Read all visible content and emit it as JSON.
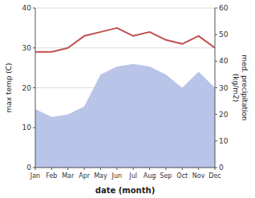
{
  "chart_data": {
    "type": "line",
    "x_label": "date (month)",
    "y_label": "max temp (C)",
    "y2_label": "med. precipitation\n(kg/m2)",
    "categories": [
      "Jan",
      "Feb",
      "Mar",
      "Apr",
      "May",
      "Jun",
      "Jul",
      "Aug",
      "Sep",
      "Oct",
      "Nov",
      "Dec"
    ],
    "series": [
      {
        "type": "area",
        "axis": "y2",
        "color": "#b8c4e8",
        "values": [
          22,
          19,
          20,
          23,
          35,
          38,
          39,
          38,
          35,
          30,
          36,
          30
        ]
      },
      {
        "type": "line",
        "color": "#c0504d",
        "values": [
          29,
          29,
          30,
          33,
          34,
          35,
          33,
          34,
          32,
          31,
          33,
          30
        ]
      }
    ],
    "ylim": [
      0,
      40
    ],
    "yticks": [
      0,
      10,
      20,
      30,
      40
    ],
    "y2lim": [
      0,
      60
    ],
    "y2ticks": [
      0,
      10,
      20,
      30,
      40,
      50,
      60
    ],
    "grid": true
  }
}
